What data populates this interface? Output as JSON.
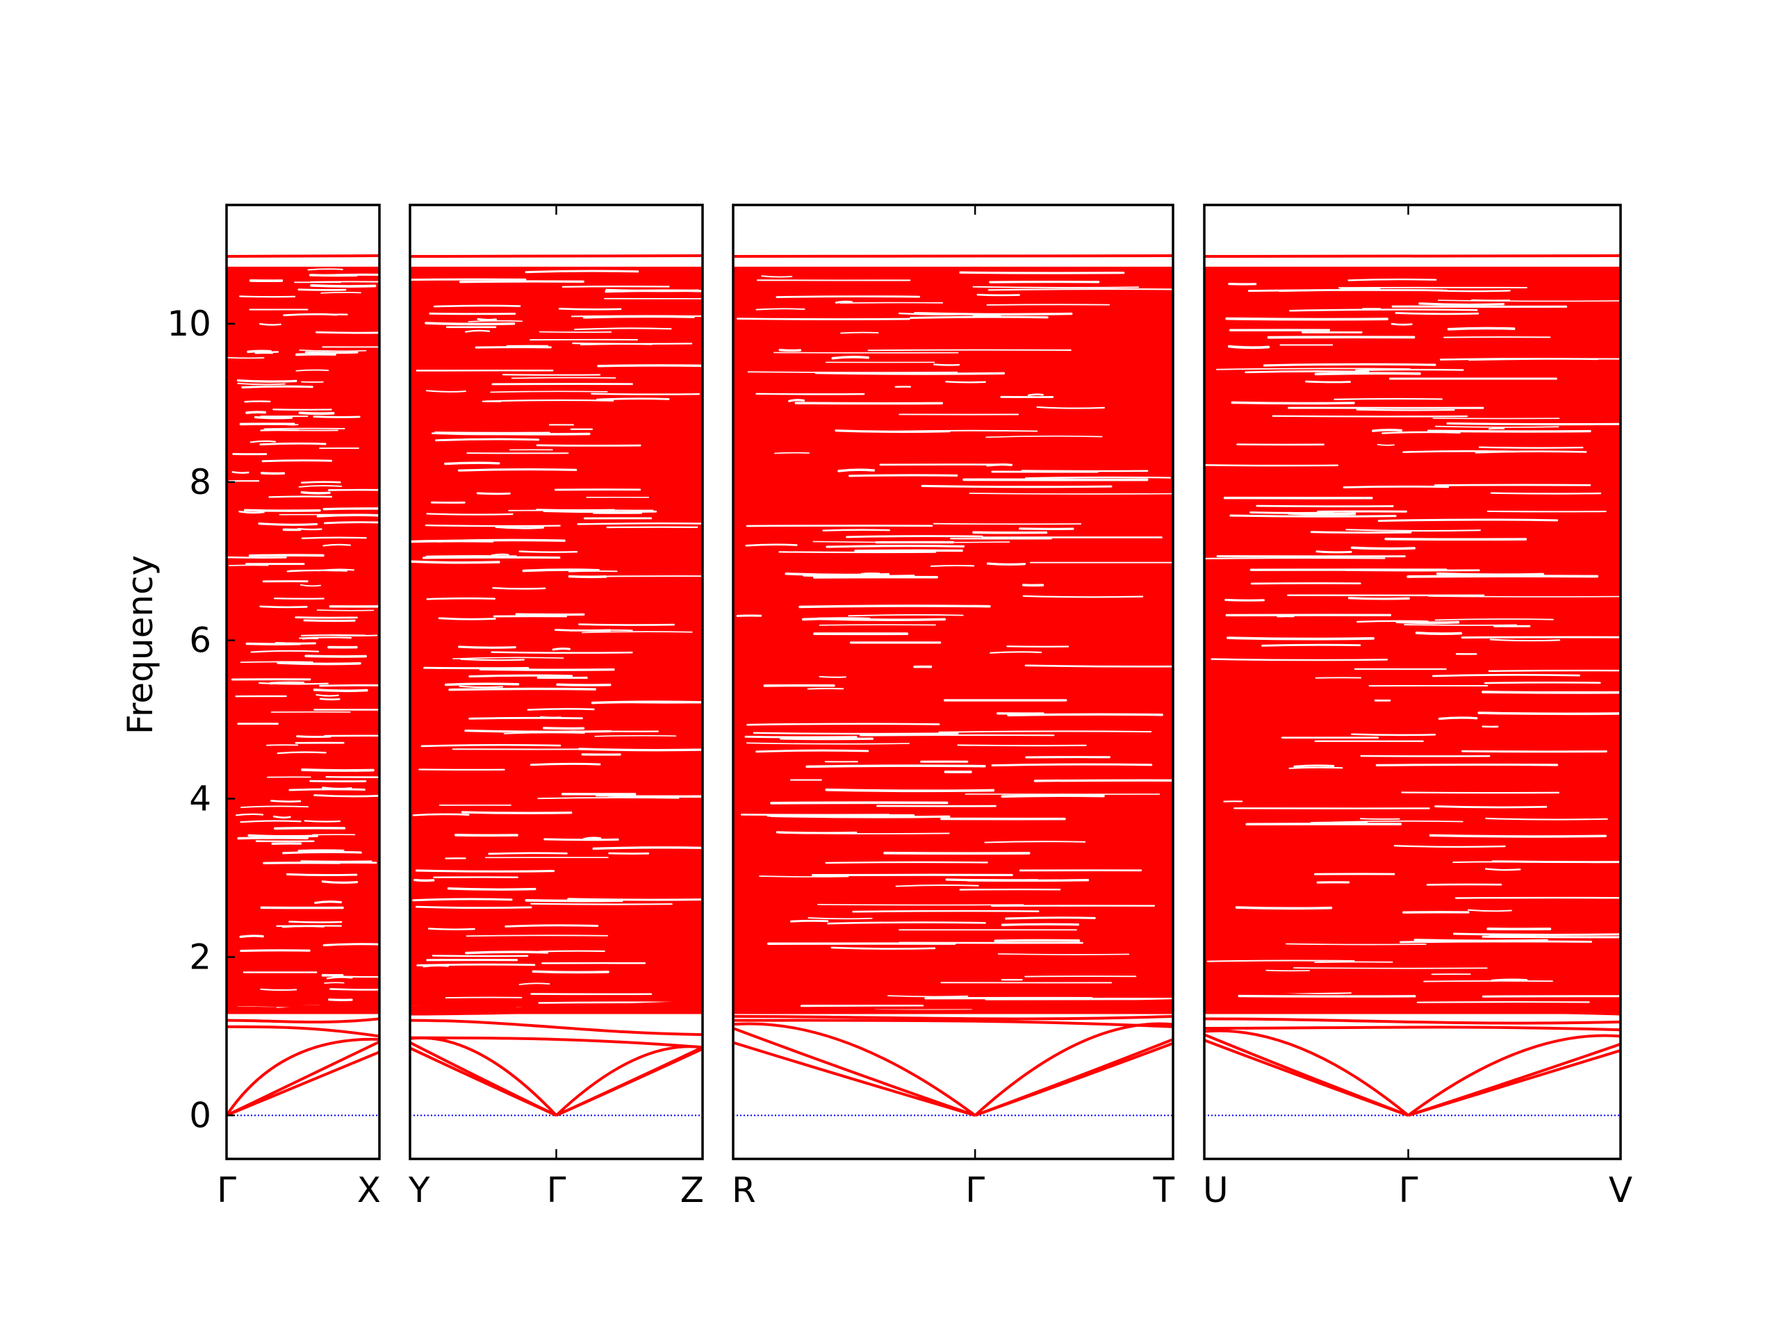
{
  "chart_data": {
    "type": "line",
    "title": "",
    "ylabel": "Frequency",
    "ylim": [
      -0.55,
      11.5
    ],
    "yticks": [
      "0",
      "2",
      "4",
      "6",
      "8",
      "10"
    ],
    "ytick_values": [
      0,
      2,
      4,
      6,
      8,
      10
    ],
    "grid": false,
    "legend": "none",
    "colors": {
      "bands": "#ff0000",
      "zero_line": "#0000ff",
      "frame": "#000000"
    },
    "panels": [
      {
        "id": "panel-1",
        "path": [
          "Γ",
          "X"
        ],
        "labels": [
          "Γ",
          "X"
        ],
        "gamma_position": 0,
        "acoustic_ends": [
          0.8,
          0.93,
          0.96
        ],
        "acoustic_peaks": [],
        "optical_start_freq": [
          1.12,
          1.2,
          1.3,
          1.4,
          1.5
        ],
        "optical_end_freq": [
          1.0,
          1.22,
          1.33,
          1.42,
          1.55
        ]
      },
      {
        "id": "panel-2",
        "path": [
          "Y",
          "Γ",
          "Z"
        ],
        "labels": [
          "Y",
          "Γ",
          "Z"
        ],
        "gamma_position": 0.5,
        "acoustic_ends_left": [
          0.85,
          0.92,
          0.97
        ],
        "acoustic_ends_right": [
          0.84,
          0.86,
          0.86
        ],
        "optical_start_freq": [
          0.98,
          1.2,
          1.28,
          1.4,
          1.55
        ],
        "optical_end_freq": [
          0.86,
          1.02,
          1.3,
          1.44,
          1.6
        ]
      },
      {
        "id": "panel-3",
        "path": [
          "R",
          "Γ",
          "T"
        ],
        "labels": [
          "R",
          "Γ",
          "T"
        ],
        "gamma_position": 0.55,
        "acoustic_ends_left": [
          0.92,
          1.1,
          1.15
        ],
        "acoustic_ends_right": [
          0.91,
          0.96,
          1.15
        ],
        "optical_start_freq": [
          1.2,
          1.25,
          1.35,
          1.45,
          1.58
        ],
        "optical_end_freq": [
          1.12,
          1.25,
          1.32,
          1.45,
          1.55
        ]
      },
      {
        "id": "panel-4",
        "path": [
          "U",
          "Γ",
          "V"
        ],
        "labels": [
          "U",
          "Γ",
          "V"
        ],
        "gamma_position": 0.49,
        "acoustic_ends_left": [
          0.95,
          1.02,
          1.06
        ],
        "acoustic_ends_right": [
          0.82,
          0.9,
          1.0
        ],
        "optical_start_freq": [
          1.1,
          1.22,
          1.3,
          1.42,
          1.55
        ],
        "optical_end_freq": [
          1.08,
          1.18,
          1.28,
          1.38,
          1.6
        ]
      }
    ],
    "high_freq_lines": [
      10.85,
      10.72,
      10.68,
      10.55,
      10.4,
      10.35,
      10.22,
      10.05,
      9.95,
      9.82
    ]
  }
}
